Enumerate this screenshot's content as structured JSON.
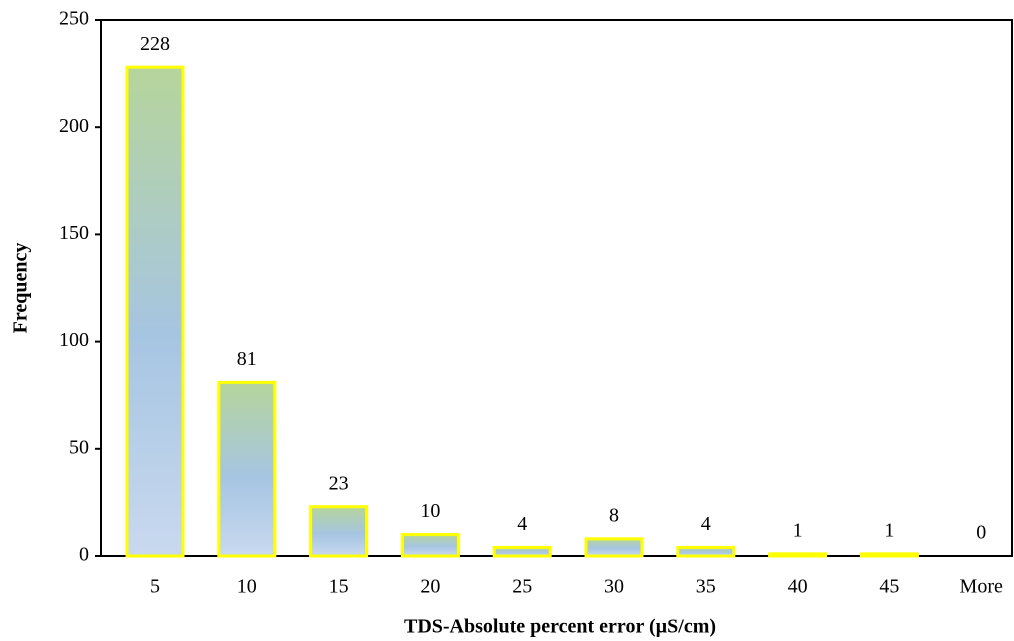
{
  "chart_data": {
    "type": "bar",
    "x_label": "TDS-Absolute percent error (µS/cm)",
    "y_label": "Frequency",
    "categories": [
      "5",
      "10",
      "15",
      "20",
      "25",
      "30",
      "35",
      "40",
      "45",
      "More"
    ],
    "values": [
      228,
      81,
      23,
      10,
      4,
      8,
      4,
      1,
      1,
      0
    ],
    "color": "#ffff00",
    "ylim": [
      0,
      250
    ],
    "yticks": [
      0,
      50,
      100,
      150,
      200,
      250
    ],
    "grid": false
  }
}
